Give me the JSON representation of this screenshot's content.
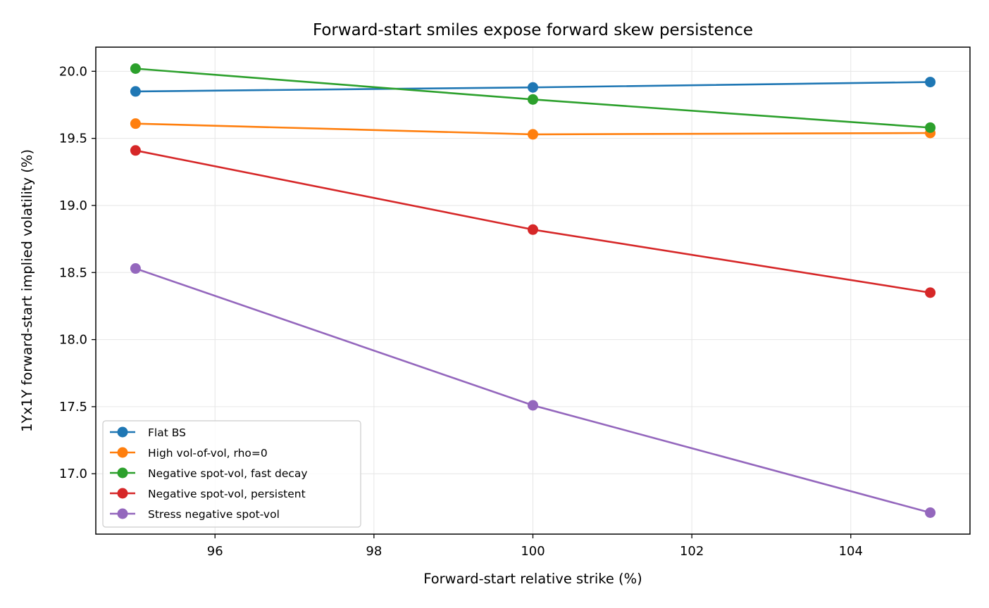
{
  "chart_data": {
    "type": "line",
    "title": "Forward-start smiles expose forward skew persistence",
    "xlabel": "Forward-start relative strike (%)",
    "ylabel": "1Yx1Y forward-start implied volatility (%)",
    "x": [
      95,
      100,
      105
    ],
    "xlim": [
      94.5,
      105.5
    ],
    "ylim": [
      16.55,
      20.18
    ],
    "xticks": [
      96,
      98,
      100,
      102,
      104
    ],
    "xtick_labels": [
      "96",
      "98",
      "100",
      "102",
      "104"
    ],
    "yticks": [
      17.0,
      17.5,
      18.0,
      18.5,
      19.0,
      19.5,
      20.0
    ],
    "ytick_labels": [
      "17.0",
      "17.5",
      "18.0",
      "18.5",
      "19.0",
      "19.5",
      "20.0"
    ],
    "grid": true,
    "legend_position": "lower-left",
    "series": [
      {
        "name": "Flat BS",
        "color": "#1f77b4",
        "values": [
          19.85,
          19.88,
          19.92
        ]
      },
      {
        "name": "High vol-of-vol, rho=0",
        "color": "#ff7f0e",
        "values": [
          19.61,
          19.53,
          19.54
        ]
      },
      {
        "name": "Negative spot-vol, fast decay",
        "color": "#2ca02c",
        "values": [
          20.02,
          19.79,
          19.58
        ]
      },
      {
        "name": "Negative spot-vol, persistent",
        "color": "#d62728",
        "values": [
          19.41,
          18.82,
          18.35
        ]
      },
      {
        "name": "Stress negative spot-vol",
        "color": "#9467bd",
        "values": [
          18.53,
          17.51,
          16.71
        ]
      }
    ]
  }
}
